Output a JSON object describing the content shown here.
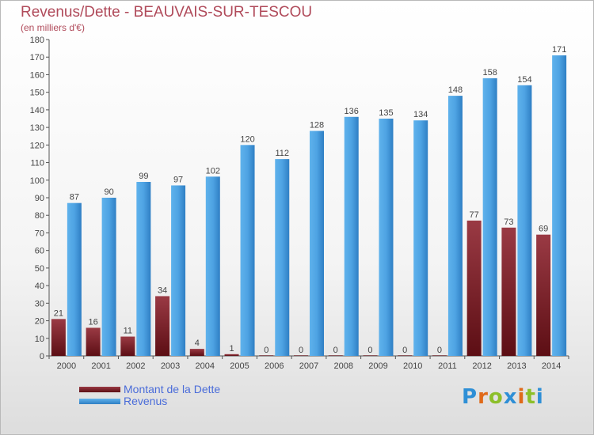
{
  "header": {
    "title": "Revenus/Dette - BEAUVAIS-SUR-TESCOU",
    "subtitle": "(en milliers d'€)"
  },
  "colors": {
    "title": "#b04a5a",
    "dette": "#7b1c24",
    "revenus": "#4ea3e3",
    "legend_text": "#4a6cd9"
  },
  "logo": {
    "text": "Proxiti",
    "letters": [
      {
        "ch": "P",
        "color": "#2e8fd6"
      },
      {
        "ch": "r",
        "color": "#e06a1a"
      },
      {
        "ch": "o",
        "color": "#8cbf2a"
      },
      {
        "ch": "x",
        "color": "#2e8fd6"
      },
      {
        "ch": "i",
        "color": "#e06a1a"
      },
      {
        "ch": "t",
        "color": "#8cbf2a"
      },
      {
        "ch": "i",
        "color": "#2e8fd6"
      }
    ]
  },
  "chart_data": {
    "type": "bar",
    "title": "Revenus/Dette - BEAUVAIS-SUR-TESCOU",
    "subtitle": "(en milliers d'€)",
    "categories": [
      "2000",
      "2001",
      "2002",
      "2003",
      "2004",
      "2005",
      "2006",
      "2007",
      "2008",
      "2009",
      "2010",
      "2011",
      "2012",
      "2013",
      "2014"
    ],
    "series": [
      {
        "name": "Montant de la Dette",
        "color": "#7b1c24",
        "values": [
          21,
          16,
          11,
          34,
          4,
          1,
          0,
          0,
          0,
          0,
          0,
          0,
          77,
          73,
          69
        ]
      },
      {
        "name": "Revenus",
        "color": "#4ea3e3",
        "values": [
          87,
          90,
          99,
          97,
          102,
          120,
          112,
          128,
          136,
          135,
          134,
          148,
          158,
          154,
          171
        ]
      }
    ],
    "ylim": [
      0,
      180
    ],
    "yticks": [
      0,
      10,
      20,
      30,
      40,
      50,
      60,
      70,
      80,
      90,
      100,
      110,
      120,
      130,
      140,
      150,
      160,
      170,
      180
    ],
    "grid": false,
    "legend": "bottom-left"
  }
}
